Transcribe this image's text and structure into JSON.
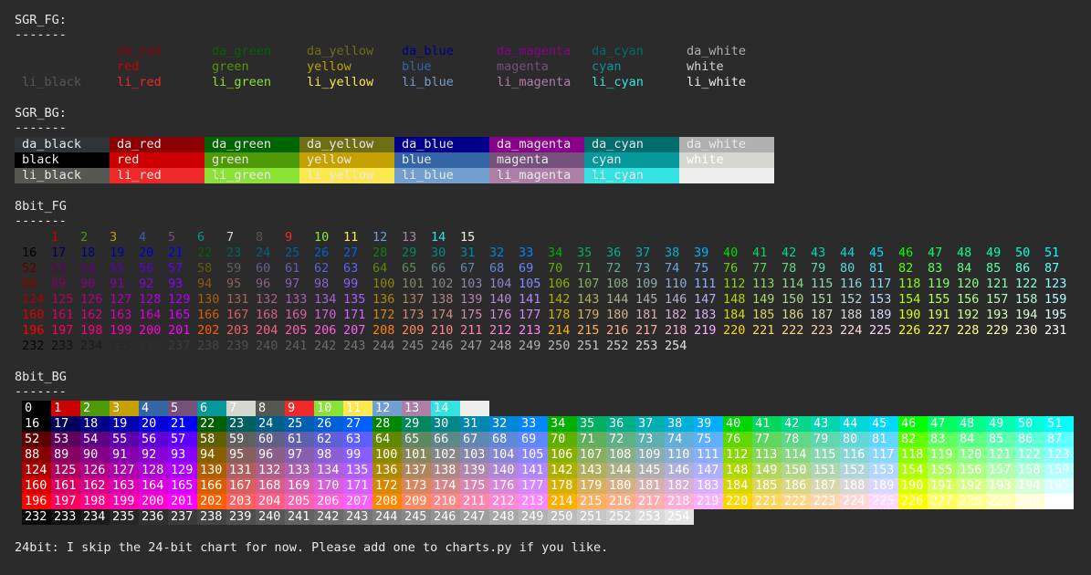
{
  "sections": {
    "sgr_fg": {
      "title": "SGR_FG:",
      "rule": "-------"
    },
    "sgr_bg": {
      "title": "SGR_BG:",
      "rule": "-------"
    },
    "fg8": {
      "title": "8bit_FG",
      "rule": "-------"
    },
    "bg8": {
      "title": "8bit_BG",
      "rule": "-------"
    }
  },
  "sgr_colors": {
    "da": [
      "#3a3a3a",
      "#8b0000",
      "#006400",
      "#6e6e14",
      "#00008b",
      "#8b008b",
      "#006c6c",
      "#b0b0b0"
    ],
    "base": [
      "#000000",
      "#cc0000",
      "#4e9a06",
      "#c4a000",
      "#3465a4",
      "#75507b",
      "#06989a",
      "#d3d7cf"
    ],
    "li": [
      "#555753",
      "#ef2929",
      "#8ae234",
      "#fce94f",
      "#729fcf",
      "#ad7fa8",
      "#34e2e2",
      "#eeeeec"
    ],
    "bg_text": "#e8e8e8"
  },
  "sgr_fg_rows": [
    [
      "",
      "da_red",
      "da_green",
      "da_yellow",
      "da_blue",
      "da_magenta",
      "da_cyan",
      "da_white"
    ],
    [
      "",
      "red",
      "green",
      "yellow",
      "blue",
      "magenta",
      "cyan",
      "white"
    ],
    [
      "li_black",
      "li_red",
      "li_green",
      "li_yellow",
      "li_blue",
      "li_magenta",
      "li_cyan",
      "li_white"
    ]
  ],
  "sgr_bg_rows": [
    [
      "da_black",
      "da_red",
      "da_green",
      "da_yellow",
      "da_blue",
      "da_magenta",
      "da_cyan",
      "da_white"
    ],
    [
      "black",
      "red",
      "green",
      "yellow",
      "blue",
      "magenta",
      "cyan",
      "white"
    ],
    [
      "li_black",
      "li_red",
      "li_green",
      "li_yellow",
      "li_blue",
      "li_magenta",
      "li_cyan",
      ""
    ]
  ],
  "fg8_rows": [
    [
      "",
      "1",
      "2",
      "3",
      "4",
      "5",
      "6",
      "7",
      "8",
      "9",
      "10",
      "11",
      "12",
      "13",
      "14",
      "15"
    ],
    [
      "16",
      "17",
      "18",
      "19",
      "20",
      "21",
      "22",
      "23",
      "24",
      "25",
      "26",
      "27",
      "28",
      "29",
      "30",
      "31",
      "32",
      "33",
      "34",
      "35",
      "36",
      "37",
      "38",
      "39",
      "40",
      "41",
      "42",
      "43",
      "44",
      "45",
      "46",
      "47",
      "48",
      "49",
      "50",
      "51"
    ],
    [
      "52",
      "53",
      "54",
      "55",
      "56",
      "57",
      "58",
      "59",
      "60",
      "61",
      "62",
      "63",
      "64",
      "65",
      "66",
      "67",
      "68",
      "69",
      "70",
      "71",
      "72",
      "73",
      "74",
      "75",
      "76",
      "77",
      "78",
      "79",
      "80",
      "81",
      "82",
      "83",
      "84",
      "85",
      "86",
      "87"
    ],
    [
      "88",
      "89",
      "90",
      "91",
      "92",
      "93",
      "94",
      "95",
      "96",
      "97",
      "98",
      "99",
      "100",
      "101",
      "102",
      "103",
      "104",
      "105",
      "106",
      "107",
      "108",
      "109",
      "110",
      "111",
      "112",
      "113",
      "114",
      "115",
      "116",
      "117",
      "118",
      "119",
      "120",
      "121",
      "122",
      "123"
    ],
    [
      "124",
      "125",
      "126",
      "127",
      "128",
      "129",
      "130",
      "131",
      "132",
      "133",
      "134",
      "135",
      "136",
      "137",
      "138",
      "139",
      "140",
      "141",
      "142",
      "143",
      "144",
      "145",
      "146",
      "147",
      "148",
      "149",
      "150",
      "151",
      "152",
      "153",
      "154",
      "155",
      "156",
      "157",
      "158",
      "159"
    ],
    [
      "160",
      "161",
      "162",
      "163",
      "164",
      "165",
      "166",
      "167",
      "168",
      "169",
      "170",
      "171",
      "172",
      "173",
      "174",
      "175",
      "176",
      "177",
      "178",
      "179",
      "180",
      "181",
      "182",
      "183",
      "184",
      "185",
      "186",
      "187",
      "188",
      "189",
      "190",
      "191",
      "192",
      "193",
      "194",
      "195"
    ],
    [
      "196",
      "197",
      "198",
      "199",
      "200",
      "201",
      "202",
      "203",
      "204",
      "205",
      "206",
      "207",
      "208",
      "209",
      "210",
      "211",
      "212",
      "213",
      "214",
      "215",
      "216",
      "217",
      "218",
      "219",
      "220",
      "221",
      "222",
      "223",
      "224",
      "225",
      "226",
      "227",
      "228",
      "229",
      "230",
      "231"
    ],
    [
      "232",
      "233",
      "234",
      "235",
      "236",
      "237",
      "238",
      "239",
      "240",
      "241",
      "242",
      "243",
      "244",
      "245",
      "246",
      "247",
      "248",
      "249",
      "250",
      "251",
      "252",
      "253",
      "254"
    ]
  ],
  "bg8_rows": [
    [
      "0",
      "1",
      "2",
      "3",
      "4",
      "5",
      "6",
      "7",
      "8",
      "9",
      "10",
      "11",
      "12",
      "13",
      "14",
      ""
    ],
    [
      "16",
      "17",
      "18",
      "19",
      "20",
      "21",
      "22",
      "23",
      "24",
      "25",
      "26",
      "27",
      "28",
      "29",
      "30",
      "31",
      "32",
      "33",
      "34",
      "35",
      "36",
      "37",
      "38",
      "39",
      "40",
      "41",
      "42",
      "43",
      "44",
      "45",
      "46",
      "47",
      "48",
      "49",
      "50",
      "51"
    ],
    [
      "52",
      "53",
      "54",
      "55",
      "56",
      "57",
      "58",
      "59",
      "60",
      "61",
      "62",
      "63",
      "64",
      "65",
      "66",
      "67",
      "68",
      "69",
      "70",
      "71",
      "72",
      "73",
      "74",
      "75",
      "76",
      "77",
      "78",
      "79",
      "80",
      "81",
      "82",
      "83",
      "84",
      "85",
      "86",
      "87"
    ],
    [
      "88",
      "89",
      "90",
      "91",
      "92",
      "93",
      "94",
      "95",
      "96",
      "97",
      "98",
      "99",
      "100",
      "101",
      "102",
      "103",
      "104",
      "105",
      "106",
      "107",
      "108",
      "109",
      "110",
      "111",
      "112",
      "113",
      "114",
      "115",
      "116",
      "117",
      "118",
      "119",
      "120",
      "121",
      "122",
      "123"
    ],
    [
      "124",
      "125",
      "126",
      "127",
      "128",
      "129",
      "130",
      "131",
      "132",
      "133",
      "134",
      "135",
      "136",
      "137",
      "138",
      "139",
      "140",
      "141",
      "142",
      "143",
      "144",
      "145",
      "146",
      "147",
      "148",
      "149",
      "150",
      "151",
      "152",
      "153",
      "154",
      "155",
      "156",
      "157",
      "158",
      "159"
    ],
    [
      "160",
      "161",
      "162",
      "163",
      "164",
      "165",
      "166",
      "167",
      "168",
      "169",
      "170",
      "171",
      "172",
      "173",
      "174",
      "175",
      "176",
      "177",
      "178",
      "179",
      "180",
      "181",
      "182",
      "183",
      "184",
      "185",
      "186",
      "187",
      "188",
      "189",
      "190",
      "191",
      "192",
      "193",
      "194",
      "195"
    ],
    [
      "196",
      "197",
      "198",
      "199",
      "200",
      "201",
      "202",
      "203",
      "204",
      "205",
      "206",
      "207",
      "208",
      "209",
      "210",
      "211",
      "212",
      "213",
      "214",
      "215",
      "216",
      "217",
      "218",
      "219",
      "220",
      "221",
      "222",
      "223",
      "224",
      "225",
      "226",
      "227",
      "228",
      "229",
      "230",
      "231"
    ],
    [
      "232",
      "233",
      "234",
      "235",
      "236",
      "237",
      "238",
      "239",
      "240",
      "241",
      "242",
      "243",
      "244",
      "245",
      "246",
      "247",
      "248",
      "249",
      "250",
      "251",
      "252",
      "253",
      "254"
    ]
  ],
  "footer": "24bit: I skip the 24-bit chart for now. Please add one to charts.py if you like."
}
